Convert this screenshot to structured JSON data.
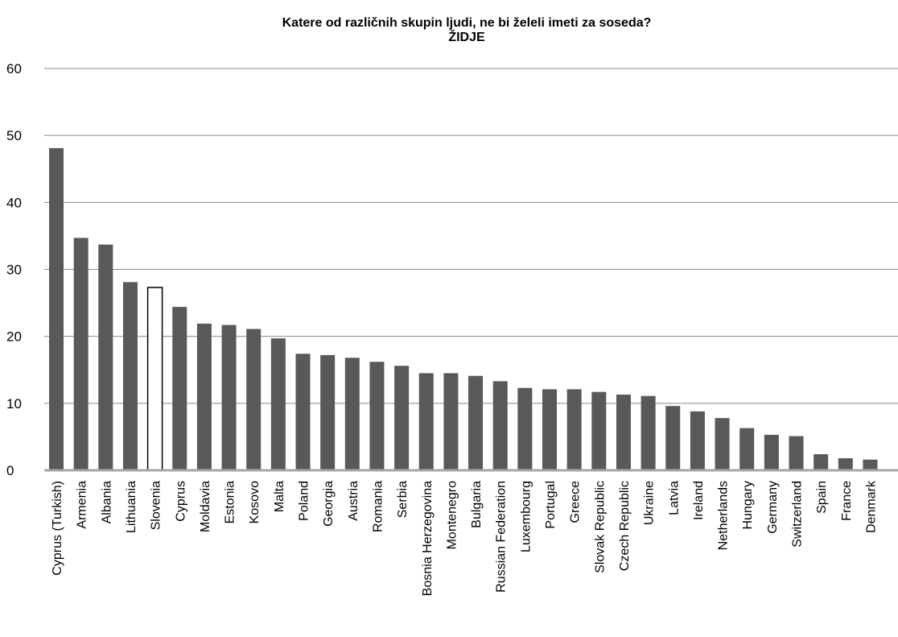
{
  "chart_data": {
    "type": "bar",
    "title": "Katere od različnih skupin ljudi, ne bi želeli imeti za soseda?",
    "subtitle": "ŽIDJE",
    "xlabel": "",
    "ylabel": "",
    "ylim": [
      0,
      60
    ],
    "yticks": [
      0,
      10,
      20,
      30,
      40,
      50,
      60
    ],
    "grid": true,
    "legend": "none",
    "bar_color": "#595959",
    "highlight_category": "Slovenia",
    "highlight_fill": "#ffffff",
    "highlight_stroke": "#000000",
    "categories": [
      "Cyprus (Turkish)",
      "Armenia",
      "Albania",
      "Lithuania",
      "Slovenia",
      "Cyprus",
      "Moldavia",
      "Estonia",
      "Kosovo",
      "Malta",
      "Poland",
      "Georgia",
      "Austria",
      "Romania",
      "Serbia",
      "Bosnia Herzegovina",
      "Montenegro",
      "Bulgaria",
      "Russian Federation",
      "Luxembourg",
      "Portugal",
      "Greece",
      "Slovak Republic",
      "Czech Republic",
      "Ukraine",
      "Latvia",
      "Ireland",
      "Netherlands",
      "Hungary",
      "Germany",
      "Switzerland",
      "Spain",
      "France",
      "Denmark"
    ],
    "values": [
      48.1,
      34.7,
      33.7,
      28.1,
      27.3,
      24.4,
      21.9,
      21.7,
      21.1,
      19.7,
      17.4,
      17.2,
      16.8,
      16.2,
      15.6,
      14.5,
      14.5,
      14.1,
      13.3,
      12.3,
      12.1,
      12.1,
      11.7,
      11.3,
      11.1,
      9.6,
      8.8,
      7.8,
      6.3,
      5.3,
      5.1,
      2.4,
      1.8,
      1.6
    ]
  }
}
